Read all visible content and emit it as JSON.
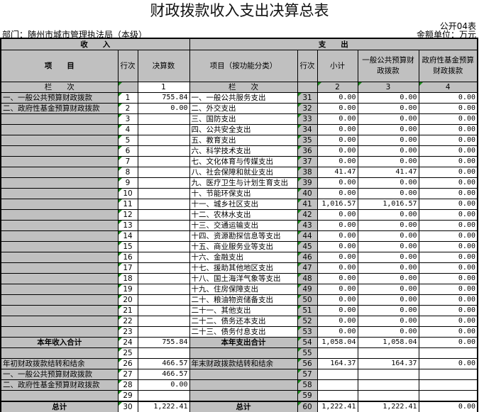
{
  "title": "财政拨款收入支出决算总表",
  "form_code": "公开04表",
  "department": "部门：随州市城市管理执法局（本级）",
  "unit": "金额单位：万元",
  "header": {
    "income": "收　　入",
    "expense": "支　　出",
    "item": "项　　目",
    "line": "行次",
    "amount": "决算数",
    "exp_item": "项目（按功能分类）",
    "subtotal": "小计",
    "general": "一般公共预算财政拨款",
    "fund": "政府性基金预算财政拨款",
    "col_label": "栏　　次",
    "col1": "1",
    "col2": "2",
    "col3": "3",
    "col4": "4"
  },
  "rows": [
    [
      "一、一般公共预算财政拨款",
      "1",
      "755.84",
      "一、一般公共服务支出",
      "31",
      "0.00",
      "0.00",
      "0.00"
    ],
    [
      "二、政府性基金预算财政拨款",
      "2",
      "0.00",
      "二、外交支出",
      "32",
      "0.00",
      "0.00",
      "0.00"
    ],
    [
      "",
      "3",
      "",
      "三、国防支出",
      "33",
      "0.00",
      "0.00",
      "0.00"
    ],
    [
      "",
      "4",
      "",
      "四、公共安全支出",
      "34",
      "0.00",
      "0.00",
      "0.00"
    ],
    [
      "",
      "5",
      "",
      "五、教育支出",
      "35",
      "0.00",
      "0.00",
      "0.00"
    ],
    [
      "",
      "6",
      "",
      "六、科学技术支出",
      "36",
      "0.00",
      "0.00",
      "0.00"
    ],
    [
      "",
      "7",
      "",
      "七、文化体育与传媒支出",
      "37",
      "0.00",
      "0.00",
      "0.00"
    ],
    [
      "",
      "8",
      "",
      "八、社会保障和就业支出",
      "38",
      "41.47",
      "41.47",
      "0.00"
    ],
    [
      "",
      "9",
      "",
      "九、医疗卫生与计划生育支出",
      "39",
      "0.00",
      "0.00",
      "0.00"
    ],
    [
      "",
      "10",
      "",
      "十、节能环保支出",
      "40",
      "0.00",
      "0.00",
      "0.00"
    ],
    [
      "",
      "11",
      "",
      "十一、城乡社区支出",
      "41",
      "1,016.57",
      "1,016.57",
      "0.00"
    ],
    [
      "",
      "12",
      "",
      "十二、农林水支出",
      "42",
      "0.00",
      "0.00",
      "0.00"
    ],
    [
      "",
      "13",
      "",
      "十三、交通运输支出",
      "43",
      "0.00",
      "0.00",
      "0.00"
    ],
    [
      "",
      "14",
      "",
      "十四、资源勘探信息等支出",
      "44",
      "0.00",
      "0.00",
      "0.00"
    ],
    [
      "",
      "15",
      "",
      "十五、商业服务业等支出",
      "45",
      "0.00",
      "0.00",
      "0.00"
    ],
    [
      "",
      "16",
      "",
      "十六、金融支出",
      "46",
      "0.00",
      "0.00",
      "0.00"
    ],
    [
      "",
      "17",
      "",
      "十七、援助其他地区支出",
      "47",
      "0.00",
      "0.00",
      "0.00"
    ],
    [
      "",
      "18",
      "",
      "十八、国土海洋气象等支出",
      "48",
      "0.00",
      "0.00",
      "0.00"
    ],
    [
      "",
      "19",
      "",
      "十九、住房保障支出",
      "49",
      "0.00",
      "0.00",
      "0.00"
    ],
    [
      "",
      "20",
      "",
      "二十、粮油物资储备支出",
      "50",
      "0.00",
      "0.00",
      "0.00"
    ],
    [
      "",
      "21",
      "",
      "二十一、其他支出",
      "51",
      "0.00",
      "0.00",
      "0.00"
    ],
    [
      "",
      "22",
      "",
      "二十二、债务还本支出",
      "52",
      "0.00",
      "0.00",
      "0.00"
    ],
    [
      "",
      "23",
      "",
      "二十三、债务付息支出",
      "53",
      "0.00",
      "0.00",
      "0.00"
    ],
    [
      "本年收入合计",
      "24",
      "755.84",
      "本年支出合计",
      "54",
      "1,058.04",
      "1,058.04",
      "0.00"
    ],
    [
      "",
      "25",
      "",
      "",
      "55",
      "",
      "",
      ""
    ],
    [
      "年初财政拨款结转和结余",
      "26",
      "466.57",
      "年末财政拨款结转和结余",
      "56",
      "164.37",
      "164.37",
      "0.00"
    ],
    [
      "一、一般公共预算财政拨款",
      "27",
      "466.57",
      "",
      "57",
      "",
      "",
      ""
    ],
    [
      "二、政府性基金预算财政拨款",
      "28",
      "0.00",
      "",
      "58",
      "",
      "",
      ""
    ],
    [
      "",
      "29",
      "",
      "",
      "59",
      "",
      "",
      ""
    ],
    [
      "总计",
      "30",
      "1,222.41",
      "总计",
      "60",
      "1,222.41",
      "1,222.41",
      "0.00"
    ]
  ]
}
